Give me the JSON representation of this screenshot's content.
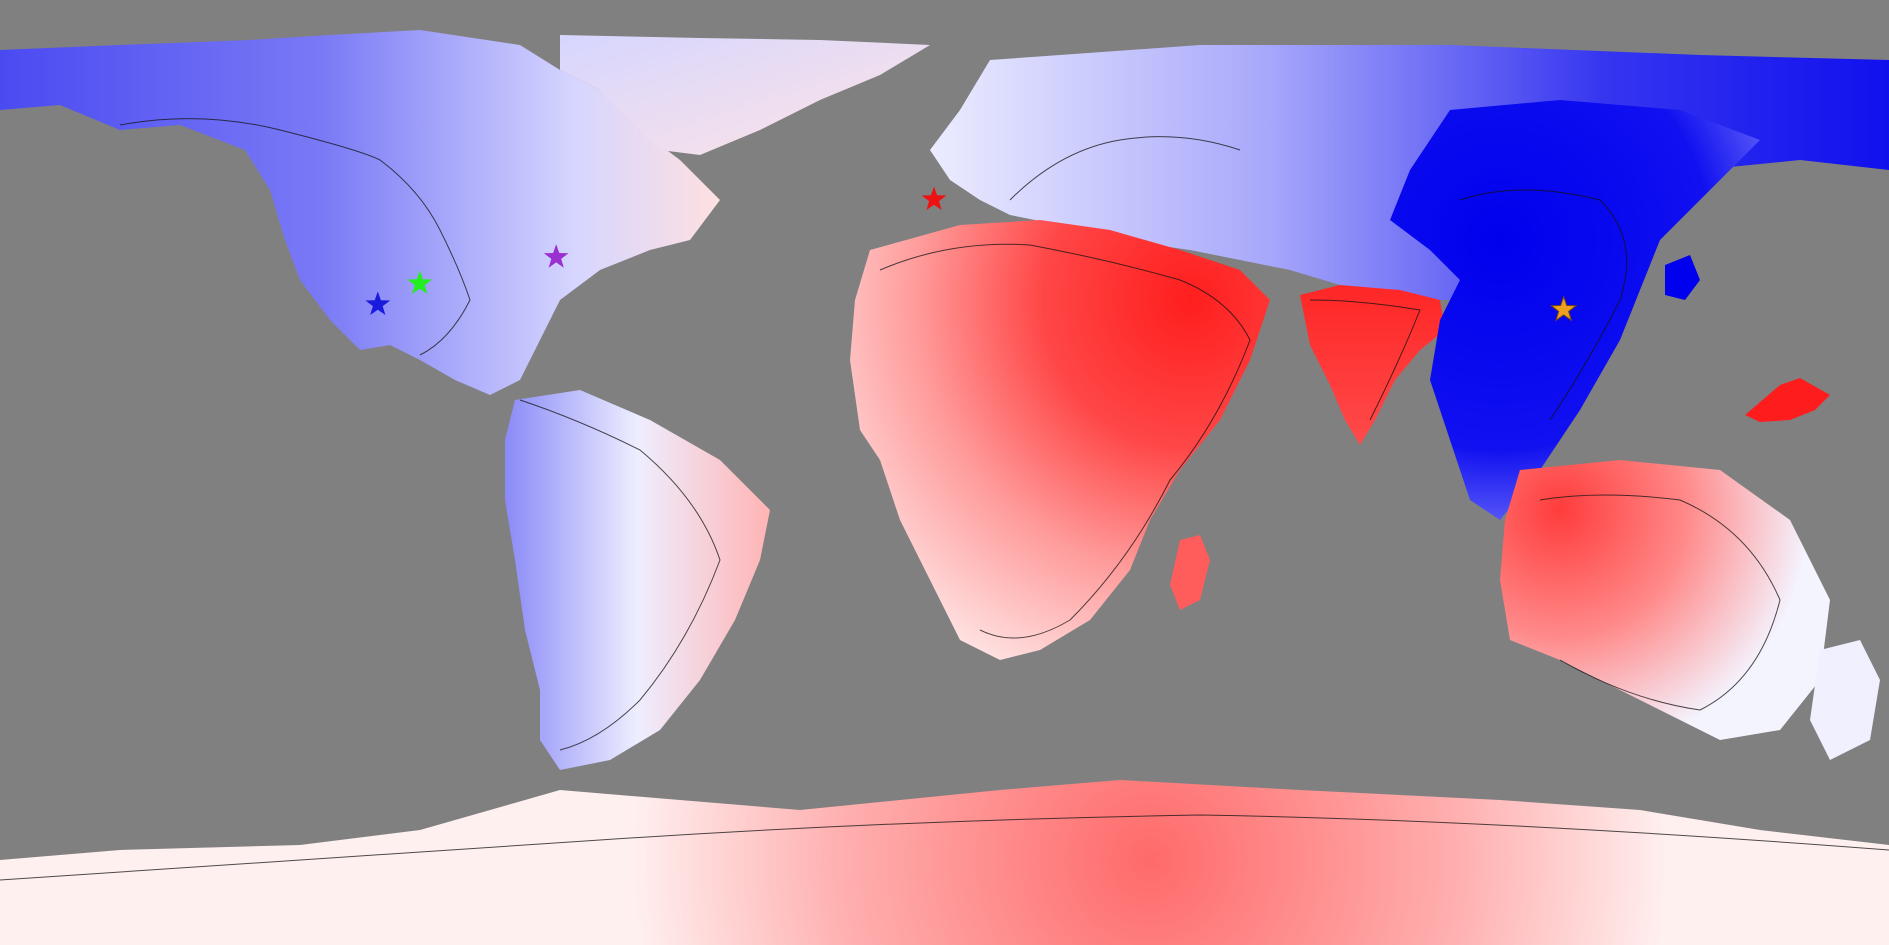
{
  "map": {
    "projection": "equirectangular",
    "ocean_color": "#808080",
    "color_scale": {
      "negative": "#0000ff",
      "neutral": "#ffffff",
      "positive": "#ff0000"
    }
  },
  "markers": [
    {
      "id": "marker-blue",
      "name": "blue-star-marker",
      "color": "#1a1adc",
      "lon": -108,
      "lat": 32
    },
    {
      "id": "marker-green",
      "name": "green-star-marker",
      "color": "#22ee22",
      "lon": -100,
      "lat": 36
    },
    {
      "id": "marker-purple",
      "name": "purple-star-marker",
      "color": "#9b30d0",
      "lon": -74,
      "lat": 41
    },
    {
      "id": "marker-red",
      "name": "red-star-marker",
      "color": "#ee1111",
      "lon": -2,
      "lat": 52
    },
    {
      "id": "marker-orange",
      "name": "orange-star-marker",
      "color": "#f0a020",
      "lon": 118,
      "lat": 31
    }
  ]
}
